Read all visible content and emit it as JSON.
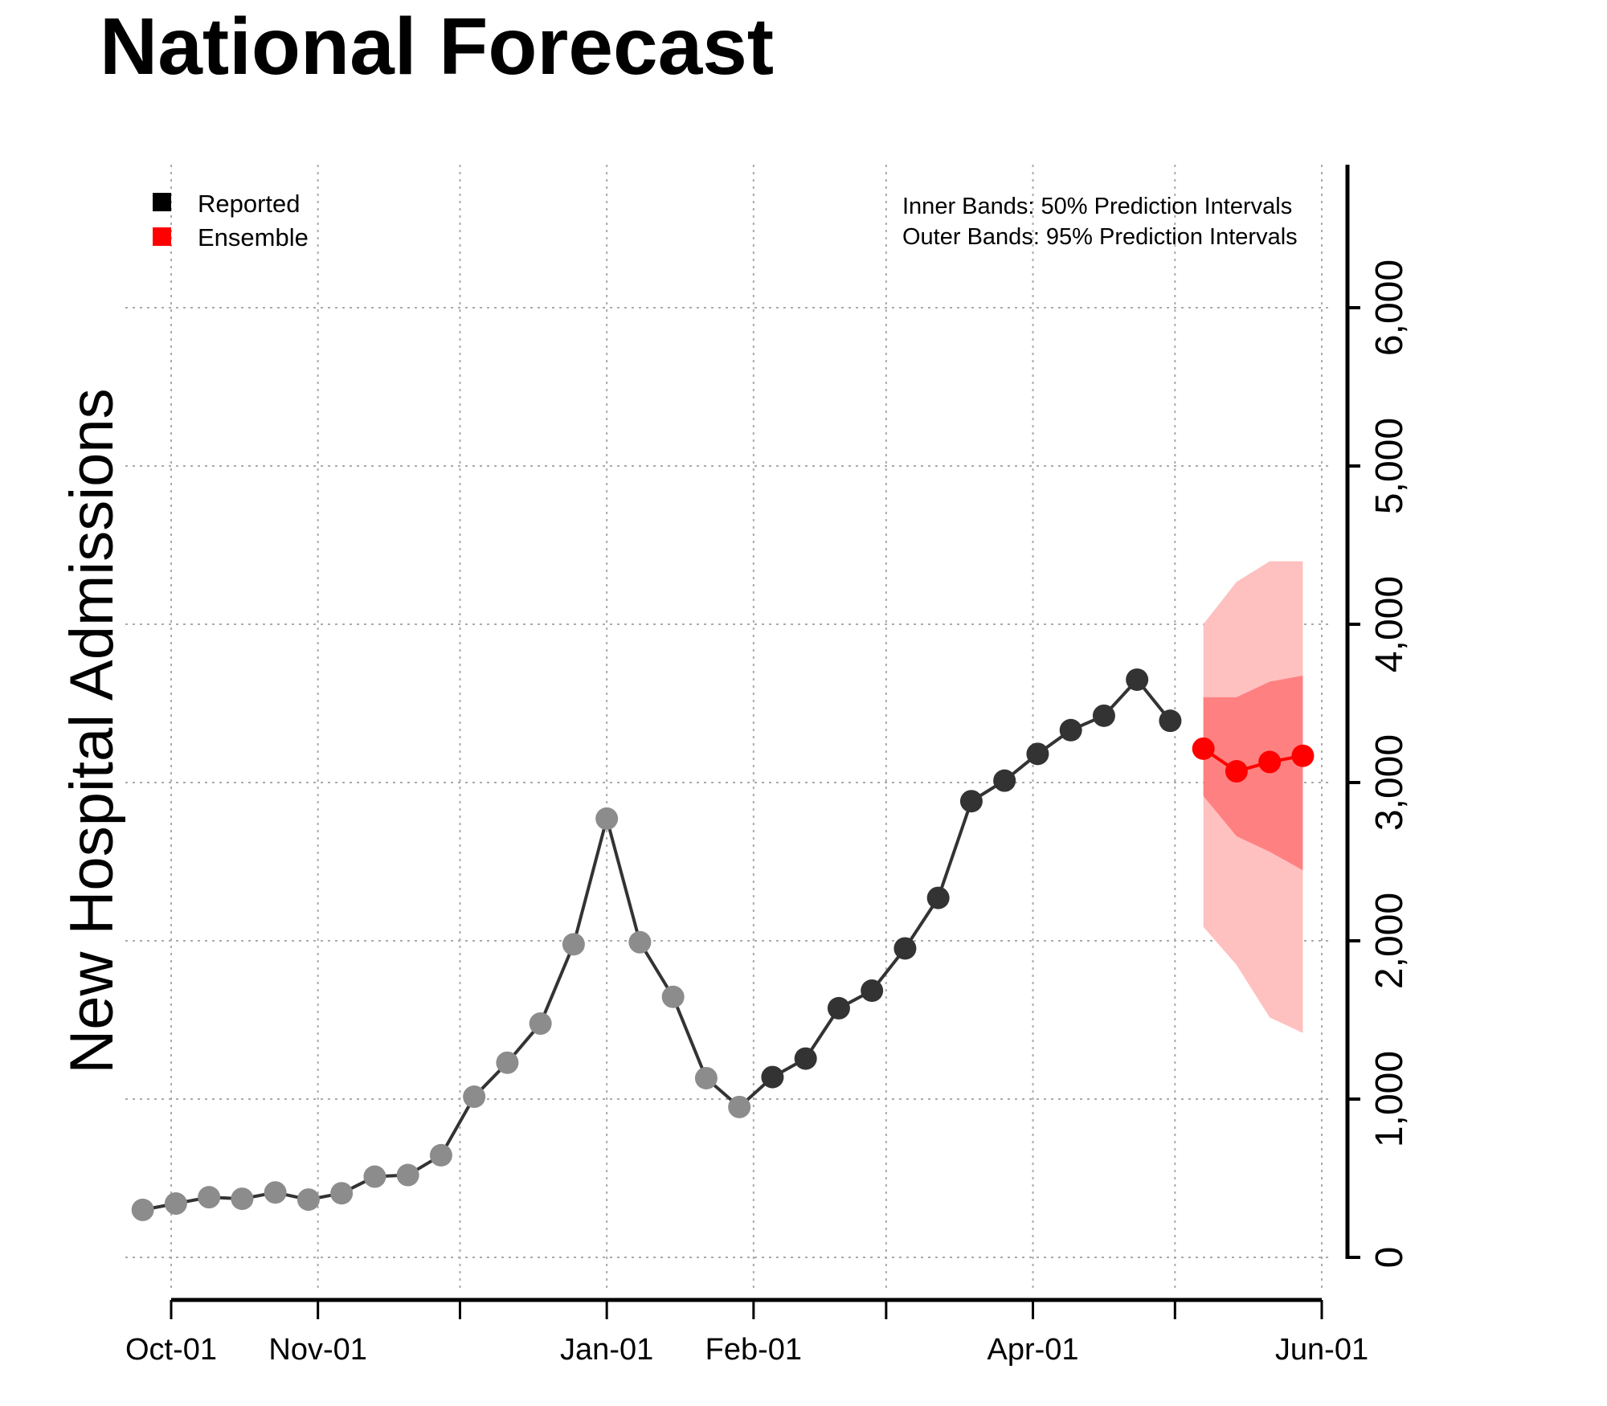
{
  "chart_data": {
    "type": "line",
    "title": "National Forecast",
    "ylabel": "New Hospital Admissions",
    "xlabel": "",
    "ylim": [
      0,
      6800
    ],
    "xlim": [
      "Sep-25",
      "Jun-01"
    ],
    "y_ticks": [
      0,
      1000,
      2000,
      3000,
      4000,
      5000,
      6000
    ],
    "y_tick_labels": [
      "0",
      "1,000",
      "2,000",
      "3,000",
      "4,000",
      "5,000",
      "6,000"
    ],
    "x_ticks": [
      "Oct-01",
      "Nov-01",
      "Dec-01",
      "Jan-01",
      "Feb-01",
      "Mar-01",
      "Apr-01",
      "May-01",
      "Jun-01"
    ],
    "x_tick_labels": [
      "Oct-01",
      "Nov-01",
      "",
      "Jan-01",
      "Feb-01",
      "",
      "Apr-01",
      "",
      "Jun-01"
    ],
    "grid": true,
    "y_axis_side": "right",
    "legend": {
      "placement": "top-left",
      "entries": [
        {
          "label": "Reported",
          "color": "#000000"
        },
        {
          "label": "Ensemble",
          "color": "#ff0000"
        }
      ]
    },
    "annotation": [
      "Inner Bands: 50% Prediction Intervals",
      "Outer Bands: 95% Prediction Intervals"
    ],
    "series": [
      {
        "name": "Reported",
        "color": "#333333",
        "faded_color": "#8c8c8c",
        "faded_count": 19,
        "x": [
          "Sep-25",
          "Oct-02",
          "Oct-09",
          "Oct-16",
          "Oct-23",
          "Oct-30",
          "Nov-06",
          "Nov-13",
          "Nov-20",
          "Nov-27",
          "Dec-04",
          "Dec-11",
          "Dec-18",
          "Dec-25",
          "Jan-01",
          "Jan-08",
          "Jan-15",
          "Jan-22",
          "Jan-29",
          "Feb-05",
          "Feb-12",
          "Feb-19",
          "Feb-26",
          "Mar-05",
          "Mar-12",
          "Mar-19",
          "Mar-26",
          "Apr-02",
          "Apr-09",
          "Apr-16",
          "Apr-23",
          "Apr-30"
        ],
        "values": [
          300,
          340,
          380,
          370,
          410,
          365,
          405,
          510,
          520,
          645,
          1015,
          1230,
          1477,
          1978,
          2772,
          1991,
          1646,
          1132,
          950,
          1139,
          1256,
          1574,
          1685,
          1952,
          2271,
          2882,
          3012,
          3181,
          3331,
          3422,
          3650,
          3390
        ]
      },
      {
        "name": "Ensemble",
        "color": "#ff0000",
        "x": [
          "May-07",
          "May-14",
          "May-21",
          "May-28"
        ],
        "values": [
          3214,
          3071,
          3130,
          3169
        ],
        "pi50": {
          "color": "#ff8080",
          "lower": [
            2915,
            2661,
            2563,
            2446
          ],
          "upper": [
            3539,
            3539,
            3637,
            3676
          ]
        },
        "pi95": {
          "color": "#ffc0c0",
          "lower": [
            2088,
            1848,
            1516,
            1418
          ],
          "upper": [
            4001,
            4268,
            4398,
            4398
          ]
        }
      }
    ]
  }
}
